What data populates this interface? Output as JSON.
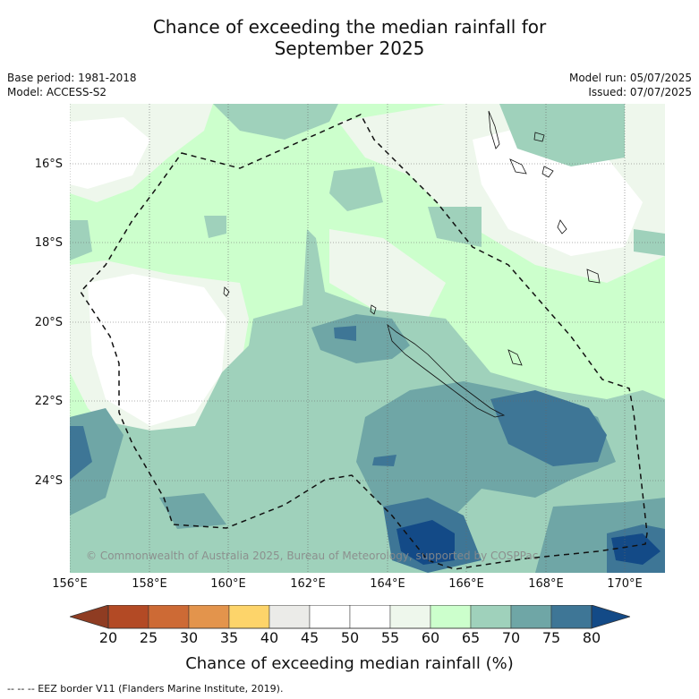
{
  "title": {
    "line1": "Chance of exceeding the median rainfall for",
    "line2": "September 2025"
  },
  "meta_left": {
    "base_period": "Base period: 1981-2018",
    "model": "Model: ACCESS-S2"
  },
  "meta_right": {
    "model_run": "Model run: 05/07/2025",
    "issued": "Issued: 07/07/2025"
  },
  "map": {
    "lat_labels": [
      "16°S",
      "18°S",
      "20°S",
      "22°S",
      "24°S"
    ],
    "lon_labels": [
      "156°E",
      "158°E",
      "160°E",
      "162°E",
      "164°E",
      "166°E",
      "168°E",
      "170°E"
    ],
    "copyright": "© Commonwealth of Australia 2025, Bureau of Meteorology, supported by COSPPac",
    "fill_colors": {
      "c40_45": "#ebebe8",
      "c45_55": "#ffffff",
      "c55_60": "#eef7ec",
      "c60_65": "#ccffcc",
      "c65_70": "#9fd1bb",
      "c70_75": "#6fa6a6",
      "c75_80": "#3e7696",
      "c80_plus": "#134a87"
    }
  },
  "colorbar": {
    "label": "Chance of exceeding median rainfall (%)",
    "ticks": [
      "20",
      "25",
      "30",
      "35",
      "40",
      "45",
      "50",
      "55",
      "60",
      "65",
      "70",
      "75",
      "80"
    ],
    "colors": [
      "#b34a25",
      "#cd6a35",
      "#e3944c",
      "#fdd46a",
      "#ebebe8",
      "#ffffff",
      "#ffffff",
      "#eef7ec",
      "#ccffcc",
      "#9fd1bb",
      "#6fa6a6",
      "#3e7696"
    ],
    "extend_low_color": "#8f3c22",
    "extend_high_color": "#134a87"
  },
  "footnote": "--  --  -- EEZ border V11 (Flanders Marine Institute, 2019)."
}
